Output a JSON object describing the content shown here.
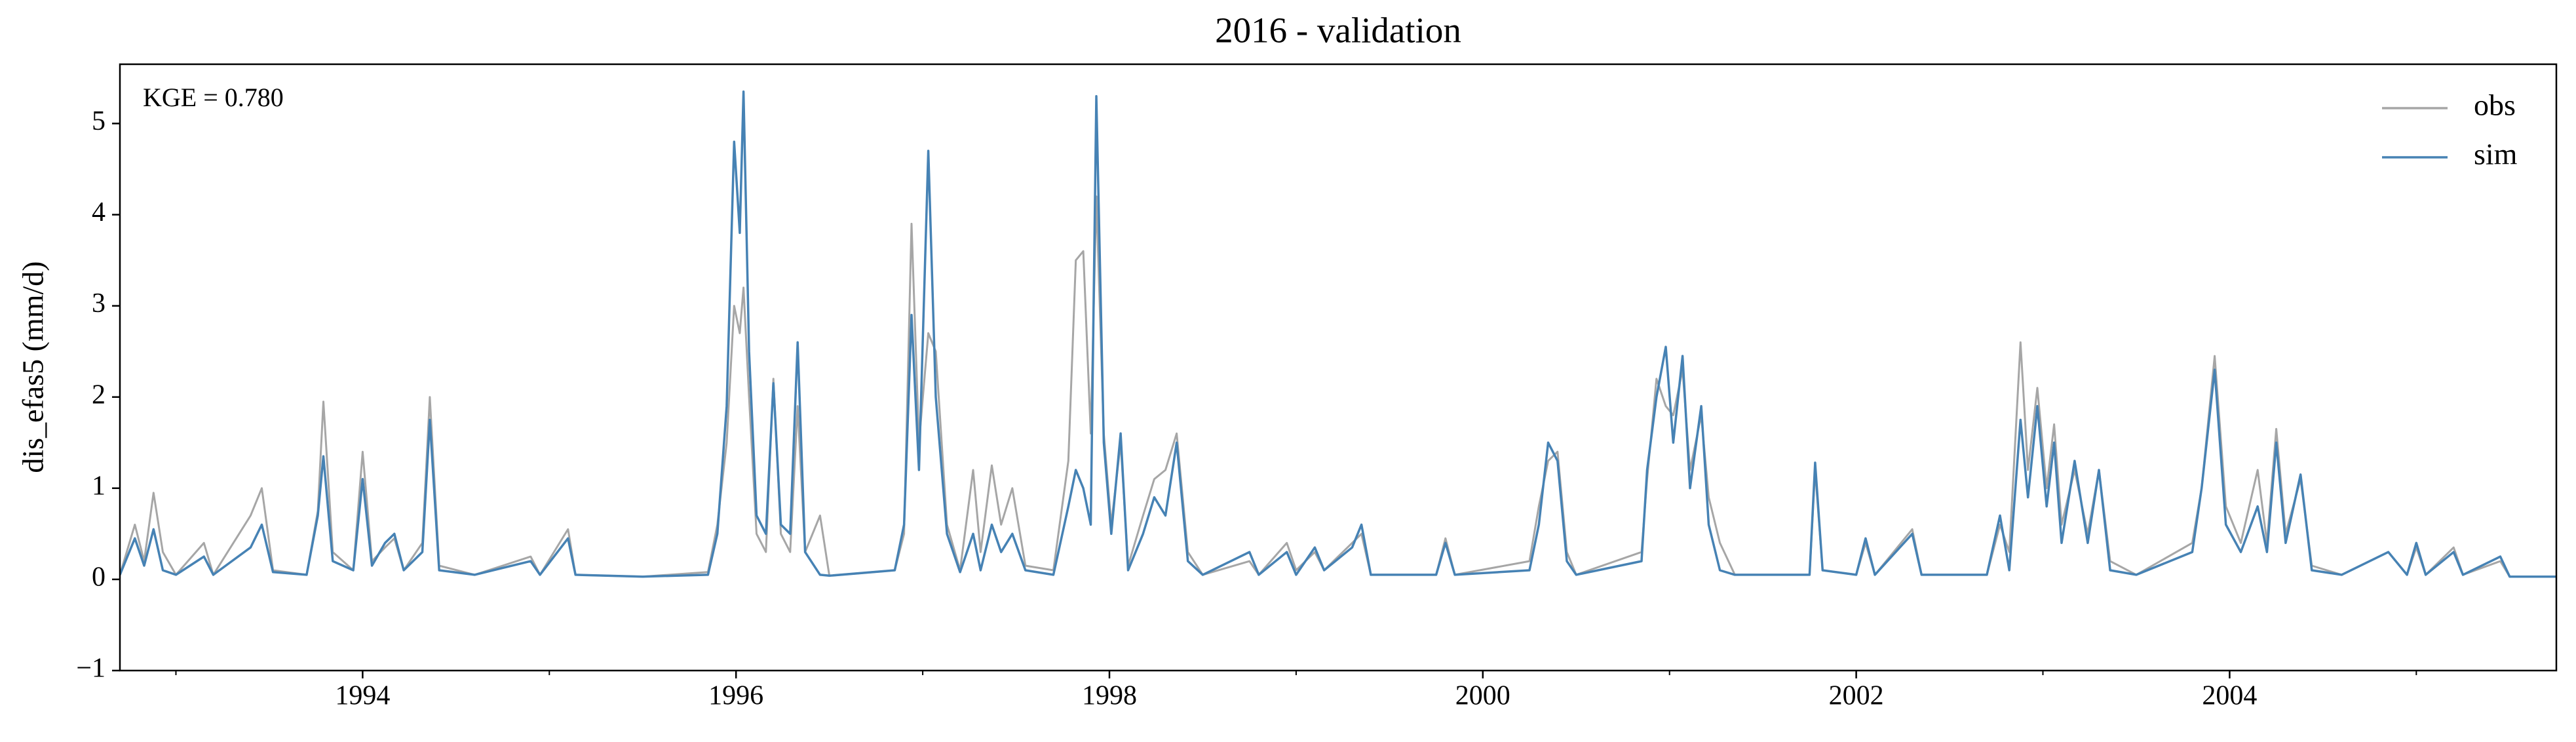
{
  "chart_data": {
    "type": "line",
    "title": "2016 - validation",
    "ylabel": "dis_efas5 (mm/d)",
    "annotation": "KGE = 0.780",
    "legend": "upper right",
    "xlim": [
      1992.7,
      2005.75
    ],
    "xticks": [
      1994,
      1996,
      1998,
      2000,
      2002,
      2004
    ],
    "xminorticks": [
      1993,
      1995,
      1997,
      1999,
      2001,
      2003,
      2005
    ],
    "ylim": [
      -1,
      5.65
    ],
    "yticks": [
      {
        "value": -1,
        "label": "−1"
      },
      0,
      1,
      2,
      3,
      4,
      5
    ],
    "x": [
      1992.7,
      1992.78,
      1992.83,
      1992.88,
      1992.93,
      1993.0,
      1993.15,
      1993.2,
      1993.4,
      1993.46,
      1993.52,
      1993.7,
      1993.76,
      1993.79,
      1993.84,
      1993.95,
      1994.0,
      1994.05,
      1994.12,
      1994.17,
      1994.22,
      1994.32,
      1994.36,
      1994.41,
      1994.6,
      1994.9,
      1994.95,
      1995.1,
      1995.14,
      1995.5,
      1995.85,
      1995.9,
      1995.95,
      1995.99,
      1996.02,
      1996.04,
      1996.07,
      1996.11,
      1996.16,
      1996.2,
      1996.24,
      1996.29,
      1996.33,
      1996.37,
      1996.45,
      1996.5,
      1996.85,
      1996.9,
      1996.94,
      1996.98,
      1997.03,
      1997.07,
      1997.13,
      1997.2,
      1997.27,
      1997.31,
      1997.37,
      1997.42,
      1997.48,
      1997.55,
      1997.7,
      1997.78,
      1997.82,
      1997.86,
      1997.9,
      1997.93,
      1997.97,
      1998.01,
      1998.06,
      1998.1,
      1998.18,
      1998.24,
      1998.3,
      1998.36,
      1998.42,
      1998.5,
      1998.75,
      1998.8,
      1998.95,
      1999.0,
      1999.1,
      1999.15,
      1999.3,
      1999.35,
      1999.4,
      1999.75,
      1999.8,
      1999.85,
      2000.25,
      2000.3,
      2000.35,
      2000.4,
      2000.45,
      2000.5,
      2000.85,
      2000.88,
      2000.93,
      2000.98,
      2001.02,
      2001.07,
      2001.11,
      2001.17,
      2001.21,
      2001.27,
      2001.35,
      2001.75,
      2001.78,
      2001.82,
      2002.0,
      2002.05,
      2002.1,
      2002.3,
      2002.35,
      2002.7,
      2002.77,
      2002.82,
      2002.88,
      2002.92,
      2002.97,
      2003.02,
      2003.06,
      2003.1,
      2003.17,
      2003.24,
      2003.3,
      2003.36,
      2003.5,
      2003.8,
      2003.85,
      2003.92,
      2003.98,
      2004.06,
      2004.15,
      2004.2,
      2004.25,
      2004.3,
      2004.38,
      2004.44,
      2004.6,
      2004.85,
      2004.95,
      2005.0,
      2005.05,
      2005.2,
      2005.25,
      2005.45,
      2005.5,
      2005.75
    ],
    "series": [
      {
        "name": "obs",
        "color": "#a6a6a6",
        "values": [
          0.05,
          0.6,
          0.2,
          0.95,
          0.3,
          0.05,
          0.4,
          0.05,
          0.7,
          1.0,
          0.1,
          0.05,
          0.75,
          1.95,
          0.3,
          0.1,
          1.4,
          0.2,
          0.35,
          0.45,
          0.1,
          0.4,
          2.0,
          0.15,
          0.05,
          0.25,
          0.05,
          0.55,
          0.05,
          0.03,
          0.08,
          0.6,
          1.5,
          3.0,
          2.7,
          3.2,
          2.0,
          0.5,
          0.3,
          2.2,
          0.5,
          0.3,
          1.9,
          0.3,
          0.7,
          0.04,
          0.1,
          0.5,
          3.9,
          1.5,
          2.7,
          2.5,
          0.6,
          0.1,
          1.2,
          0.3,
          1.25,
          0.6,
          1.0,
          0.15,
          0.1,
          1.3,
          3.5,
          3.6,
          1.6,
          4.2,
          1.6,
          0.6,
          1.5,
          0.15,
          0.7,
          1.1,
          1.2,
          1.6,
          0.3,
          0.05,
          0.2,
          0.05,
          0.4,
          0.1,
          0.3,
          0.1,
          0.4,
          0.5,
          0.05,
          0.05,
          0.45,
          0.05,
          0.2,
          0.8,
          1.3,
          1.4,
          0.3,
          0.05,
          0.3,
          1.1,
          2.2,
          1.9,
          1.8,
          2.3,
          1.2,
          1.8,
          0.9,
          0.4,
          0.05,
          0.05,
          1.2,
          0.1,
          0.05,
          0.4,
          0.05,
          0.55,
          0.05,
          0.05,
          0.6,
          0.3,
          2.6,
          1.2,
          2.1,
          1.0,
          1.7,
          0.6,
          1.2,
          0.5,
          1.2,
          0.2,
          0.05,
          0.4,
          1.0,
          2.45,
          0.8,
          0.4,
          1.2,
          0.4,
          1.65,
          0.5,
          1.1,
          0.15,
          0.05,
          0.3,
          0.05,
          0.35,
          0.05,
          0.35,
          0.05,
          0.2,
          0.03,
          0.03
        ]
      },
      {
        "name": "sim",
        "color": "#4682b4",
        "values": [
          0.05,
          0.45,
          0.15,
          0.55,
          0.1,
          0.05,
          0.25,
          0.05,
          0.35,
          0.6,
          0.08,
          0.05,
          0.7,
          1.35,
          0.2,
          0.1,
          1.1,
          0.15,
          0.4,
          0.5,
          0.1,
          0.3,
          1.75,
          0.1,
          0.05,
          0.2,
          0.05,
          0.45,
          0.05,
          0.03,
          0.05,
          0.5,
          1.9,
          4.8,
          3.8,
          5.35,
          2.5,
          0.7,
          0.5,
          2.15,
          0.6,
          0.5,
          2.6,
          0.3,
          0.05,
          0.04,
          0.1,
          0.6,
          2.9,
          1.2,
          4.7,
          2.0,
          0.5,
          0.08,
          0.5,
          0.1,
          0.6,
          0.3,
          0.5,
          0.1,
          0.05,
          0.8,
          1.2,
          1.0,
          0.6,
          5.3,
          1.5,
          0.5,
          1.6,
          0.1,
          0.5,
          0.9,
          0.7,
          1.5,
          0.2,
          0.05,
          0.3,
          0.05,
          0.3,
          0.05,
          0.35,
          0.1,
          0.35,
          0.6,
          0.05,
          0.05,
          0.4,
          0.05,
          0.1,
          0.6,
          1.5,
          1.3,
          0.2,
          0.05,
          0.2,
          1.2,
          2.0,
          2.55,
          1.5,
          2.45,
          1.0,
          1.9,
          0.6,
          0.1,
          0.05,
          0.05,
          1.28,
          0.1,
          0.05,
          0.45,
          0.05,
          0.5,
          0.05,
          0.05,
          0.7,
          0.1,
          1.75,
          0.9,
          1.9,
          0.8,
          1.5,
          0.4,
          1.3,
          0.4,
          1.2,
          0.1,
          0.05,
          0.3,
          1.0,
          2.3,
          0.6,
          0.3,
          0.8,
          0.3,
          1.5,
          0.4,
          1.15,
          0.1,
          0.05,
          0.3,
          0.05,
          0.4,
          0.05,
          0.3,
          0.05,
          0.25,
          0.03,
          0.03
        ]
      }
    ]
  }
}
